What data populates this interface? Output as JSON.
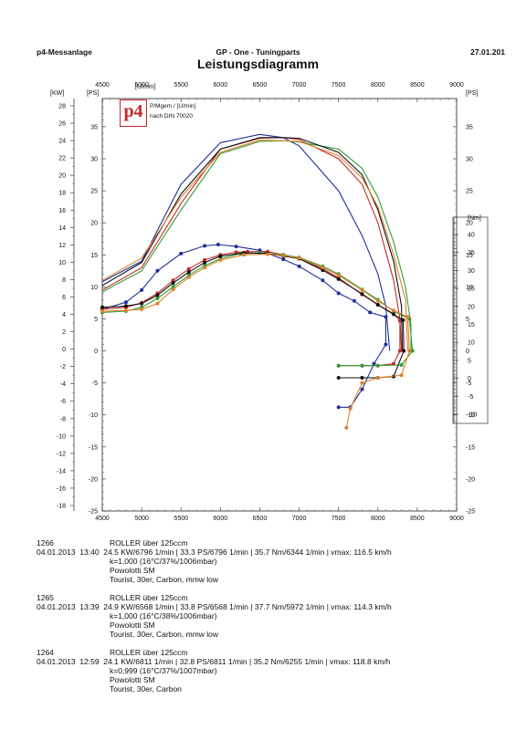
{
  "header": {
    "left": "p4-Messanlage",
    "center": "GP - One - Tuningparts",
    "right": "27.01.201",
    "title": "Leistungsdiagramm"
  },
  "logo": {
    "mark": "p4",
    "line1": "P/Mgem / [U/min]",
    "line2": "nach DIN 70020"
  },
  "units": {
    "x": "[U/min]",
    "kw": "[KW]",
    "ps_left": "[PS]",
    "ps_right": "[PS]",
    "nm": "[Nm]"
  },
  "runs": [
    {
      "id": "1266",
      "date": "04.01.2013",
      "time": "13:40",
      "vehicle": "ROLLER über 125ccm",
      "summary": "24.5 KW/6796 1/min  |  33.3 PS/6796 1/min  |  35.7 Nm/6344 1/min  |  vmax: 116.5 km/h",
      "k": "k=1,000 (16°C/37%/1006mbar)",
      "setup1": "Powolotti SM",
      "setup2": "Tourist, 30er, Carbon, mmw low"
    },
    {
      "id": "1265",
      "date": "04.01.2013",
      "time": "13:39",
      "vehicle": "ROLLER über 125ccm",
      "summary": "24.9 KW/6568 1/min  |  33.8 PS/6568 1/min  |  37.7 Nm/5972 1/min  |  vmax: 114.3 km/h",
      "k": "k=1,000 (16°C/38%/1006mbar)",
      "setup1": "Powolotti SM",
      "setup2": "Tourist, 30er, Carbon, mmw low"
    },
    {
      "id": "1264",
      "date": "04.01.2013",
      "time": "12:59",
      "vehicle": "ROLLER über 125ccm",
      "summary": "24.1 KW/6811 1/min  |  32.8 PS/6811 1/min  |  35.2 Nm/6255 1/min  |  vmax: 118.8 km/h",
      "k": "k=0,999 (16°C/37%/1007mbar)",
      "setup1": "Powolotti SM",
      "setup2": "Tourist, 30er, Carbon"
    }
  ],
  "chart_data": {
    "type": "line",
    "title": "Leistungsdiagramm",
    "xlabel": "[U/min]",
    "xlim": [
      4500,
      9000
    ],
    "x_ticks": [
      4500,
      5000,
      5500,
      6000,
      6500,
      7000,
      7500,
      8000,
      8500,
      9000
    ],
    "kw_ticks": [
      28,
      26,
      24,
      22,
      20,
      18,
      16,
      14,
      12,
      10,
      8,
      6,
      4,
      2,
      0,
      -2,
      -4,
      -6,
      -8,
      -10,
      -12,
      -14,
      -16,
      -18
    ],
    "ps_ticks": [
      35,
      30,
      25,
      20,
      15,
      10,
      5,
      0,
      -5,
      -10,
      -15,
      -20,
      -25
    ],
    "nm_ticks": [
      40,
      35,
      30,
      25,
      20,
      15,
      10,
      5,
      0,
      -5,
      -10
    ],
    "grid": false,
    "series": [
      {
        "color": "#1f2f9a",
        "power_ps": [
          [
            4500,
            10.8
          ],
          [
            5000,
            14
          ],
          [
            5500,
            26
          ],
          [
            6000,
            32.5
          ],
          [
            6500,
            33.8
          ],
          [
            6796,
            33.3
          ],
          [
            7000,
            32
          ],
          [
            7500,
            25
          ],
          [
            7800,
            18
          ],
          [
            8000,
            12
          ],
          [
            8100,
            7
          ],
          [
            8150,
            0
          ]
        ],
        "torque_ps": [
          [
            4500,
            6.5
          ],
          [
            4800,
            7.6
          ],
          [
            5000,
            9.5
          ],
          [
            5200,
            12.5
          ],
          [
            5500,
            15.2
          ],
          [
            5800,
            16.4
          ],
          [
            5972,
            16.6
          ],
          [
            6200,
            16.3
          ],
          [
            6500,
            15.7
          ],
          [
            6800,
            14.3
          ],
          [
            7000,
            13.2
          ],
          [
            7300,
            11
          ],
          [
            7500,
            9
          ],
          [
            7700,
            7.8
          ],
          [
            7900,
            6
          ],
          [
            8100,
            5.3
          ],
          [
            8100,
            1
          ],
          [
            7950,
            -2
          ],
          [
            7800,
            -6
          ],
          [
            7650,
            -8.8
          ],
          [
            7500,
            -8.8
          ]
        ]
      },
      {
        "color": "#c62a26",
        "power_ps": [
          [
            4500,
            9.5
          ],
          [
            5000,
            13
          ],
          [
            5500,
            23
          ],
          [
            6000,
            31.5
          ],
          [
            6500,
            33.2
          ],
          [
            6796,
            33.3
          ],
          [
            7000,
            33
          ],
          [
            7500,
            30
          ],
          [
            7800,
            26
          ],
          [
            8000,
            20
          ],
          [
            8200,
            11
          ],
          [
            8280,
            5
          ],
          [
            8300,
            0
          ]
        ],
        "torque_ps": [
          [
            4500,
            6.5
          ],
          [
            4800,
            6.8
          ],
          [
            5000,
            7.5
          ],
          [
            5200,
            9
          ],
          [
            5400,
            11
          ],
          [
            5600,
            12.8
          ],
          [
            5800,
            14.2
          ],
          [
            6000,
            15
          ],
          [
            6200,
            15.4
          ],
          [
            6344,
            15.5
          ],
          [
            6600,
            15.5
          ],
          [
            6800,
            15
          ],
          [
            7000,
            14.5
          ],
          [
            7300,
            12.8
          ],
          [
            7500,
            11.4
          ],
          [
            7800,
            8.8
          ],
          [
            8000,
            7.2
          ],
          [
            8200,
            5.8
          ],
          [
            8280,
            4.7
          ],
          [
            8280,
            0
          ],
          [
            8200,
            -2
          ],
          [
            8000,
            -2.3
          ],
          [
            7800,
            -2.3
          ],
          [
            7500,
            -2.3
          ]
        ]
      },
      {
        "color": "#2f9e3a",
        "power_ps": [
          [
            4500,
            9.2
          ],
          [
            5000,
            12.5
          ],
          [
            5500,
            22
          ],
          [
            6000,
            30.8
          ],
          [
            6500,
            32.7
          ],
          [
            6811,
            32.8
          ],
          [
            7000,
            32.6
          ],
          [
            7500,
            31.5
          ],
          [
            7800,
            28.5
          ],
          [
            8000,
            24
          ],
          [
            8200,
            17
          ],
          [
            8350,
            10
          ],
          [
            8420,
            4
          ],
          [
            8420,
            0
          ]
        ],
        "torque_ps": [
          [
            4500,
            6
          ],
          [
            4800,
            6.2
          ],
          [
            5000,
            6.8
          ],
          [
            5200,
            8.2
          ],
          [
            5400,
            10
          ],
          [
            5600,
            11.8
          ],
          [
            5800,
            13.3
          ],
          [
            6000,
            14.4
          ],
          [
            6255,
            15.2
          ],
          [
            6500,
            15.3
          ],
          [
            6800,
            15
          ],
          [
            7000,
            14.6
          ],
          [
            7300,
            13.2
          ],
          [
            7500,
            12
          ],
          [
            7800,
            9.6
          ],
          [
            8000,
            8
          ],
          [
            8200,
            6.2
          ],
          [
            8400,
            5
          ],
          [
            8440,
            0
          ],
          [
            8300,
            -2.2
          ],
          [
            8000,
            -2.3
          ],
          [
            7800,
            -2.3
          ],
          [
            7500,
            -2.3
          ]
        ]
      },
      {
        "color": "#111111",
        "power_ps": [
          [
            4500,
            10.2
          ],
          [
            5000,
            13.8
          ],
          [
            5500,
            24.5
          ],
          [
            6000,
            31.5
          ],
          [
            6500,
            33.3
          ],
          [
            6800,
            33.3
          ],
          [
            7000,
            33.2
          ],
          [
            7500,
            31
          ],
          [
            7800,
            27.5
          ],
          [
            8000,
            22
          ],
          [
            8200,
            14
          ],
          [
            8300,
            7
          ],
          [
            8310,
            0
          ]
        ],
        "torque_ps": [
          [
            4500,
            6.8
          ],
          [
            4800,
            7
          ],
          [
            5000,
            7.4
          ],
          [
            5200,
            8.7
          ],
          [
            5400,
            10.6
          ],
          [
            5600,
            12.3
          ],
          [
            5800,
            13.8
          ],
          [
            6000,
            14.8
          ],
          [
            6300,
            15.3
          ],
          [
            6600,
            15.2
          ],
          [
            6800,
            14.8
          ],
          [
            7000,
            14.4
          ],
          [
            7300,
            12.6
          ],
          [
            7500,
            11.2
          ],
          [
            7800,
            8.9
          ],
          [
            8000,
            7.2
          ],
          [
            8200,
            5.7
          ],
          [
            8320,
            4.8
          ],
          [
            8330,
            0
          ],
          [
            8200,
            -4
          ],
          [
            8000,
            -4.2
          ],
          [
            7800,
            -4.2
          ],
          [
            7500,
            -4.2
          ]
        ]
      },
      {
        "color": "#e0802a",
        "power_ps": [
          [
            4500,
            11
          ],
          [
            5000,
            14.5
          ],
          [
            5500,
            24
          ],
          [
            6000,
            31
          ],
          [
            6500,
            32.9
          ],
          [
            6811,
            32.8
          ],
          [
            7000,
            32.7
          ],
          [
            7500,
            30.5
          ],
          [
            7800,
            27
          ],
          [
            8000,
            22.5
          ],
          [
            8200,
            15
          ],
          [
            8350,
            8
          ],
          [
            8380,
            0
          ]
        ],
        "torque_ps": [
          [
            4500,
            6.2
          ],
          [
            4800,
            6.3
          ],
          [
            5000,
            6.5
          ],
          [
            5200,
            7.4
          ],
          [
            5400,
            9.6
          ],
          [
            5600,
            11.5
          ],
          [
            5800,
            13
          ],
          [
            6000,
            14.2
          ],
          [
            6300,
            15
          ],
          [
            6600,
            15.1
          ],
          [
            6800,
            14.9
          ],
          [
            7000,
            14.5
          ],
          [
            7300,
            13
          ],
          [
            7500,
            11.8
          ],
          [
            7800,
            9.5
          ],
          [
            8000,
            7.8
          ],
          [
            8200,
            6.3
          ],
          [
            8380,
            5.3
          ],
          [
            8400,
            0
          ],
          [
            8300,
            -3.8
          ],
          [
            8000,
            -4.2
          ],
          [
            7800,
            -5
          ],
          [
            7650,
            -9
          ],
          [
            7600,
            -12
          ]
        ]
      }
    ]
  }
}
